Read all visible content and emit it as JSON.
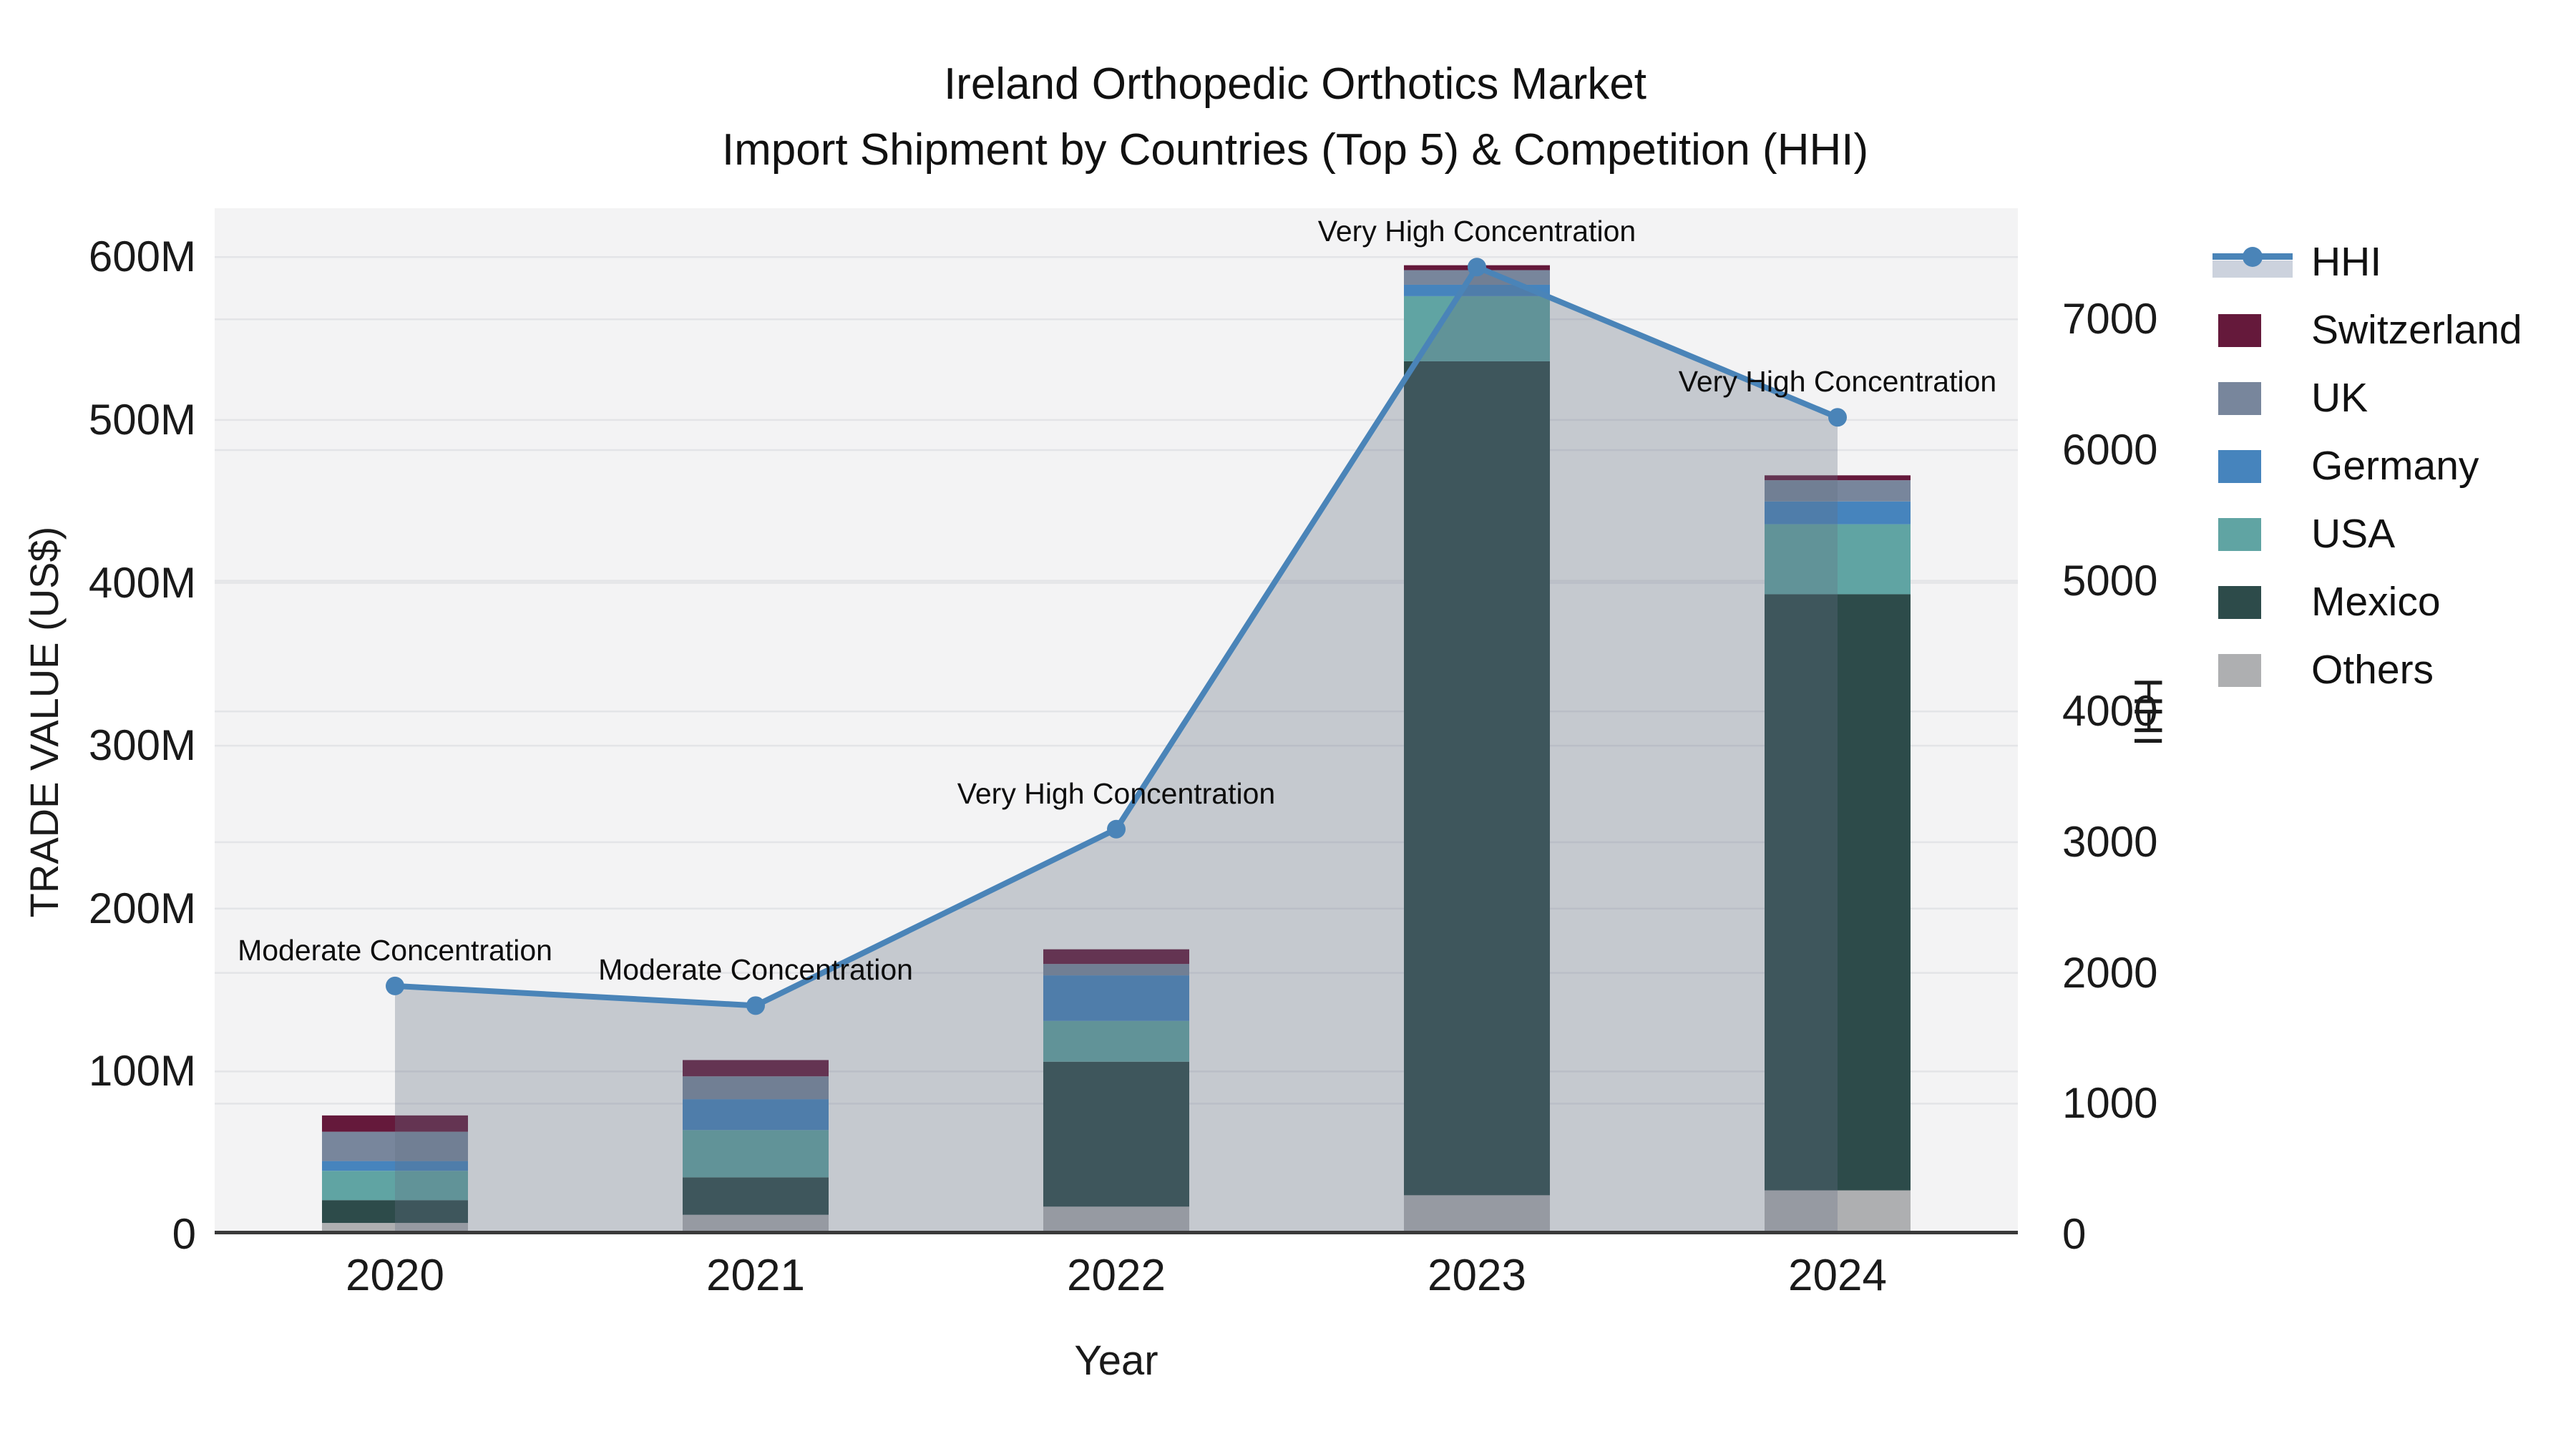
{
  "title": {
    "line1": "Ireland Orthopedic Orthotics Market",
    "line2": "Import Shipment by Countries (Top 5) & Competition (HHI)"
  },
  "axes": {
    "y_left": {
      "title": "TRADE VALUE (US$)",
      "tick_labels": [
        "0",
        "100M",
        "200M",
        "300M",
        "400M",
        "500M",
        "600M"
      ],
      "tick_values": [
        0,
        100,
        200,
        300,
        400,
        500,
        600
      ],
      "axis_max": 630
    },
    "y_right": {
      "title": "HHI",
      "tick_labels": [
        "0",
        "1000",
        "2000",
        "3000",
        "4000",
        "5000",
        "6000",
        "7000"
      ],
      "tick_values": [
        0,
        1000,
        2000,
        3000,
        4000,
        5000,
        6000,
        7000
      ],
      "axis_max": 7850
    },
    "x": {
      "title": "Year",
      "tick_labels": [
        "2020",
        "2021",
        "2022",
        "2023",
        "2024"
      ]
    }
  },
  "legend": {
    "items": [
      {
        "label": "HHI",
        "type": "line",
        "color": "#4a84b8"
      },
      {
        "label": "Switzerland",
        "type": "swatch",
        "color": "#65193b"
      },
      {
        "label": "UK",
        "type": "swatch",
        "color": "#78869c"
      },
      {
        "label": "Germany",
        "type": "swatch",
        "color": "#4684bd"
      },
      {
        "label": "USA",
        "type": "swatch",
        "color": "#60a4a3"
      },
      {
        "label": "Mexico",
        "type": "swatch",
        "color": "#2d4b4a"
      },
      {
        "label": "Others",
        "type": "swatch",
        "color": "#aeafb1"
      }
    ]
  },
  "chart_data": {
    "type": "combo-stacked-bar-with-line-area",
    "categories": [
      "2020",
      "2021",
      "2022",
      "2023",
      "2024"
    ],
    "value_unit": "M US$",
    "series": [
      {
        "name": "Others",
        "values": [
          7,
          12,
          17,
          24,
          27
        ],
        "color": "#aeafb1"
      },
      {
        "name": "Mexico",
        "values": [
          14,
          23,
          89,
          512,
          366
        ],
        "color": "#2d4b4a"
      },
      {
        "name": "USA",
        "values": [
          18,
          29,
          25,
          40,
          43
        ],
        "color": "#60a4a3"
      },
      {
        "name": "Germany",
        "values": [
          6,
          19,
          28,
          7,
          14
        ],
        "color": "#4684bd"
      },
      {
        "name": "UK",
        "values": [
          18,
          14,
          7,
          9,
          13
        ],
        "color": "#78869c"
      },
      {
        "name": "Switzerland",
        "values": [
          10,
          10,
          9,
          3,
          3
        ],
        "color": "#65193b"
      }
    ],
    "bar_totals": [
      73,
      107,
      175,
      595,
      466
    ],
    "line": {
      "name": "HHI",
      "values": [
        1900,
        1750,
        3100,
        7400,
        6250
      ],
      "color": "#4a84b8",
      "area_fill": "rgba(100,112,130,0.32)"
    },
    "annotations": [
      {
        "category": "2020",
        "text": "Moderate Concentration"
      },
      {
        "category": "2021",
        "text": "Moderate Concentration"
      },
      {
        "category": "2022",
        "text": "Very High Concentration"
      },
      {
        "category": "2023",
        "text": "Very High Concentration"
      },
      {
        "category": "2024",
        "text": "Very High Concentration"
      }
    ],
    "ylim_left": [
      0,
      630
    ],
    "ylim_right": [
      0,
      7850
    ],
    "grid": true,
    "legend_position": "right",
    "plot_background": "#f3f3f4",
    "grid_color": "#e3e4e7",
    "spine_color": "#3a3a3a",
    "text_color": "#1a1a1a"
  }
}
